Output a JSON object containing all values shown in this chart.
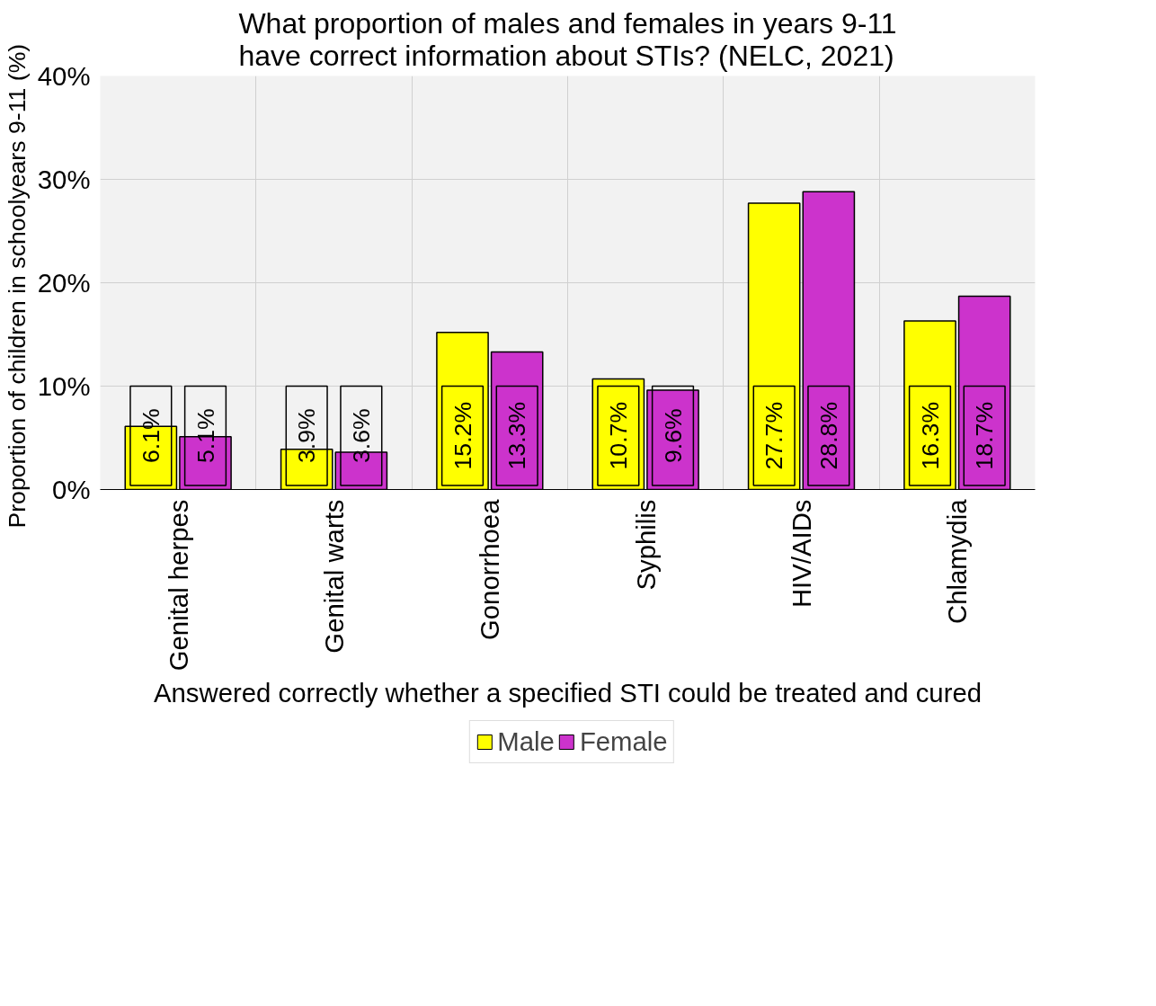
{
  "chart_data": {
    "type": "bar",
    "title": "What proportion of males and females in years 9-11\nhave correct information about STIs? (NELC, 2021)",
    "ylabel": "Proportion of children in schoolyears 9-11  (%)",
    "xlabel": "Answered correctly whether a specified STI could be treated and cured",
    "categories": [
      "Genital herpes",
      "Genital warts",
      "Gonorrhoea",
      "Syphilis",
      "HIV/AIDs",
      "Chlamydia"
    ],
    "series": [
      {
        "name": "Male",
        "color": "#ffff00",
        "values": [
          6.1,
          3.9,
          15.2,
          10.7,
          27.7,
          16.3
        ],
        "value_labels": [
          "6.1%",
          "3.9%",
          "15.2%",
          "10.7%",
          "27.7%",
          "16.3%"
        ]
      },
      {
        "name": "Female",
        "color": "#cc33cc",
        "values": [
          5.1,
          3.6,
          13.3,
          9.6,
          28.8,
          18.7
        ],
        "value_labels": [
          "5.1%",
          "3.6%",
          "13.3%",
          "9.6%",
          "28.8%",
          "18.7%"
        ]
      }
    ],
    "ylim": [
      0,
      40
    ],
    "yticks": [
      {
        "value": 0,
        "label": "0%"
      },
      {
        "value": 10,
        "label": "10%"
      },
      {
        "value": 20,
        "label": "20%"
      },
      {
        "value": 30,
        "label": "30%"
      },
      {
        "value": 40,
        "label": "40%"
      }
    ],
    "grid": true,
    "legend": "bottom"
  }
}
